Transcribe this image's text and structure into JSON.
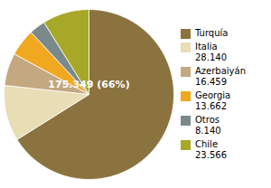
{
  "chart_data": {
    "type": "pie",
    "categories": [
      "Turquía",
      "Italia\n28.140",
      "Azerbaiyán\n16.459",
      "Georgia\n13.662",
      "Otros\n8.140",
      "Chile\n23.566"
    ],
    "values": [
      175.349,
      28.14,
      16.459,
      13.662,
      8.14,
      23.566
    ],
    "colors": [
      "#8B7340",
      "#E8DDB5",
      "#C4A882",
      "#F0A820",
      "#7A8A8A",
      "#A8A828"
    ],
    "legend": "right",
    "annotations": [
      {
        "text": "175.349 (66%)"
      }
    ]
  }
}
